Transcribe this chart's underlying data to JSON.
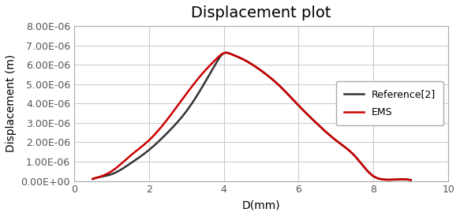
{
  "title": "Displacement plot",
  "xlabel": "D(mm)",
  "ylabel": "Displacement (m)",
  "xlim": [
    0,
    10
  ],
  "ylim": [
    0,
    8e-06
  ],
  "xticks": [
    0,
    2,
    4,
    6,
    8,
    10
  ],
  "yticks": [
    0,
    1e-06,
    2e-06,
    3e-06,
    4e-06,
    5e-06,
    6e-06,
    7e-06,
    8e-06
  ],
  "ytick_labels": [
    "0.00E+00",
    "1.00E-06",
    "2.00E-06",
    "3.00E-06",
    "4.00E-06",
    "5.00E-06",
    "6.00E-06",
    "7.00E-06",
    "8.00E-06"
  ],
  "ref_color": "#333333",
  "ems_color": "#cc0000",
  "ref_label": "Reference[2]",
  "ems_label": "EMS",
  "line_width": 1.8,
  "background_color": "#ffffff",
  "plot_bg_color": "#ffffff",
  "grid_color": "#cccccc",
  "title_fontsize": 14,
  "axis_label_fontsize": 10,
  "tick_fontsize": 9,
  "legend_fontsize": 9,
  "ref_x": [
    0.5,
    0.8,
    1.0,
    1.5,
    2.0,
    2.5,
    3.0,
    3.5,
    3.8,
    4.0,
    4.2,
    4.5,
    5.0,
    5.5,
    6.0,
    6.5,
    7.0,
    7.5,
    8.0,
    8.2,
    8.5,
    9.0
  ],
  "ref_y": [
    1e-07,
    2.5e-07,
    3.5e-07,
    9e-07,
    1.6e-06,
    2.5e-06,
    3.6e-06,
    5.1e-06,
    6.1e-06,
    6.6e-06,
    6.55e-06,
    6.3e-06,
    5.7e-06,
    4.9e-06,
    3.9e-06,
    2.95e-06,
    2.1e-06,
    1.3e-06,
    2.5e-07,
    1e-07,
    7e-08,
    5e-08
  ],
  "ems_x": [
    0.5,
    0.8,
    1.0,
    1.5,
    2.0,
    2.5,
    3.0,
    3.5,
    3.8,
    4.0,
    4.2,
    4.5,
    5.0,
    5.5,
    6.0,
    6.5,
    7.0,
    7.5,
    8.0,
    8.2,
    8.5,
    9.0
  ],
  "ems_y": [
    1.2e-07,
    3e-07,
    5e-07,
    1.3e-06,
    2.1e-06,
    3.2e-06,
    4.5e-06,
    5.7e-06,
    6.3e-06,
    6.6e-06,
    6.55e-06,
    6.3e-06,
    5.7e-06,
    4.9e-06,
    3.9e-06,
    2.95e-06,
    2.1e-06,
    1.3e-06,
    2.5e-07,
    1e-07,
    7e-08,
    5e-08
  ]
}
